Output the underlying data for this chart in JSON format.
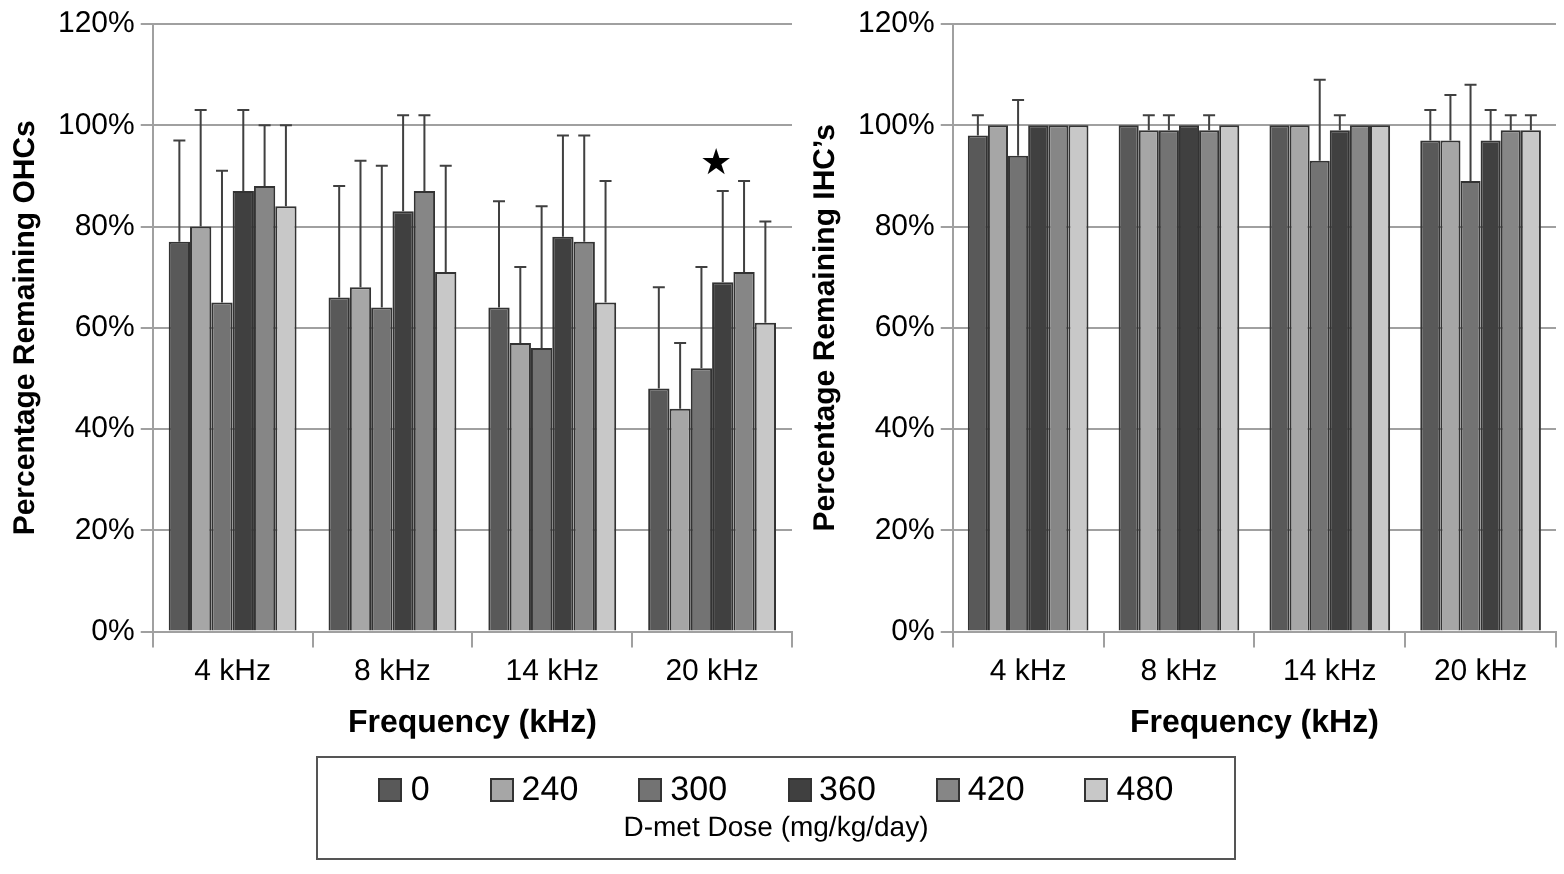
{
  "chart_data": [
    {
      "type": "bar",
      "categories": [
        "4 kHz",
        "8 kHz",
        "14 kHz",
        "20 kHz"
      ],
      "xlabel": "Frequency (kHz)",
      "ylabel": "Percentage Remaining OHCs",
      "ylim": [
        0,
        120
      ],
      "yticks": [
        {
          "value": 0,
          "label": "0%"
        },
        {
          "value": 20,
          "label": "20%"
        },
        {
          "value": 40,
          "label": "40%"
        },
        {
          "value": 60,
          "label": "60%"
        },
        {
          "value": 80,
          "label": "80%"
        },
        {
          "value": 100,
          "label": "100%"
        },
        {
          "value": 120,
          "label": "120%"
        }
      ],
      "grid": "y",
      "legend": "bottom",
      "legend_title": "D-met Dose (mg/kg/day)",
      "annotations": [
        "★"
      ],
      "series": [
        {
          "name": "0",
          "color": "#595959",
          "values": [
            77,
            66,
            64,
            48
          ],
          "errors": [
            [
              77,
              97
            ],
            [
              66,
              88
            ],
            [
              64,
              85
            ],
            [
              48,
              68
            ]
          ]
        },
        {
          "name": "240",
          "color": "#a6a6a6",
          "values": [
            80,
            68,
            57,
            44
          ],
          "errors": [
            [
              80,
              103
            ],
            [
              68,
              93
            ],
            [
              57,
              72
            ],
            [
              44,
              57
            ]
          ]
        },
        {
          "name": "300",
          "color": "#737373",
          "values": [
            65,
            64,
            56,
            52
          ],
          "errors": [
            [
              65,
              91
            ],
            [
              64,
              92
            ],
            [
              56,
              84
            ],
            [
              52,
              72
            ]
          ]
        },
        {
          "name": "360",
          "color": "#404040",
          "values": [
            87,
            83,
            78,
            69
          ],
          "errors": [
            [
              87,
              103
            ],
            [
              83,
              102
            ],
            [
              78,
              98
            ],
            [
              69,
              87
            ]
          ]
        },
        {
          "name": "420",
          "color": "#868686",
          "values": [
            88,
            87,
            77,
            71
          ],
          "errors": [
            [
              88,
              100
            ],
            [
              87,
              102
            ],
            [
              77,
              98
            ],
            [
              71,
              89
            ]
          ]
        },
        {
          "name": "480",
          "color": "#c8c8c8",
          "values": [
            84,
            71,
            65,
            61
          ],
          "errors": [
            [
              84,
              100
            ],
            [
              71,
              92
            ],
            [
              65,
              89
            ],
            [
              61,
              81
            ]
          ]
        }
      ]
    },
    {
      "type": "bar",
      "categories": [
        "4 kHz",
        "8 kHz",
        "14 kHz",
        "20 kHz"
      ],
      "xlabel": "Frequency (kHz)",
      "ylabel": "Percentage Remaining IHC’s",
      "ylim": [
        0,
        120
      ],
      "yticks": [
        {
          "value": 0,
          "label": "0%"
        },
        {
          "value": 20,
          "label": "20%"
        },
        {
          "value": 40,
          "label": "40%"
        },
        {
          "value": 60,
          "label": "60%"
        },
        {
          "value": 80,
          "label": "80%"
        },
        {
          "value": 100,
          "label": "100%"
        },
        {
          "value": 120,
          "label": "120%"
        }
      ],
      "grid": "y",
      "series": [
        {
          "name": "0",
          "color": "#595959",
          "values": [
            98,
            100,
            100,
            97
          ],
          "errors": [
            [
              98,
              102
            ],
            null,
            null,
            [
              97,
              103
            ]
          ]
        },
        {
          "name": "240",
          "color": "#a6a6a6",
          "values": [
            100,
            99,
            100,
            97
          ],
          "errors": [
            null,
            [
              99,
              102
            ],
            null,
            [
              97,
              106
            ]
          ]
        },
        {
          "name": "300",
          "color": "#737373",
          "values": [
            94,
            99,
            93,
            89
          ],
          "errors": [
            [
              94,
              105
            ],
            [
              99,
              102
            ],
            [
              93,
              109
            ],
            [
              89,
              108
            ]
          ]
        },
        {
          "name": "360",
          "color": "#404040",
          "values": [
            100,
            100,
            99,
            97
          ],
          "errors": [
            null,
            null,
            [
              99,
              102
            ],
            [
              97,
              103
            ]
          ]
        },
        {
          "name": "420",
          "color": "#868686",
          "values": [
            100,
            99,
            100,
            99
          ],
          "errors": [
            null,
            [
              99,
              102
            ],
            null,
            [
              99,
              102
            ]
          ]
        },
        {
          "name": "480",
          "color": "#c8c8c8",
          "values": [
            100,
            100,
            100,
            99
          ],
          "errors": [
            null,
            null,
            null,
            [
              99,
              102
            ]
          ]
        }
      ]
    }
  ]
}
